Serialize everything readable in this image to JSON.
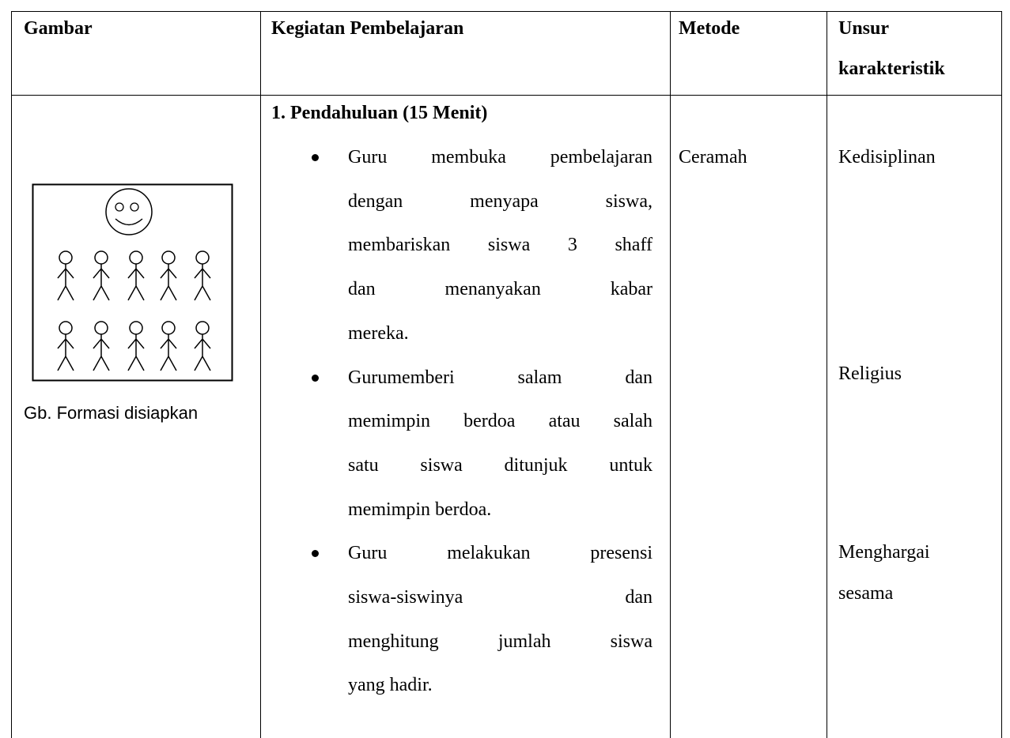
{
  "table": {
    "headers": [
      "Gambar",
      "Kegiatan Pembelajaran",
      "Metode",
      [
        "Unsur",
        "karakteristik"
      ]
    ],
    "image_caption": "Gb. Formasi disiapkan",
    "activity": {
      "heading": "1. Pendahuluan (15 Menit)",
      "bullets": [
        {
          "lines": [
            "Guru membuka pembelajaran",
            "dengan menyapa siswa,",
            "membariskan siswa 3 shaff",
            "dan menanyakan kabar",
            "mereka."
          ]
        },
        {
          "lines": [
            "Gurumemberi salam dan",
            "memimpin berdoa atau salah",
            "satu siswa ditunjuk untuk",
            "memimpin berdoa."
          ]
        },
        {
          "lines": [
            "Guru melakukan presensi",
            "siswa-siswinya dan",
            "menghitung jumlah siswa",
            "yang hadir."
          ]
        }
      ]
    },
    "method": "Ceramah",
    "characteristics": [
      [
        "Kedisiplinan"
      ],
      [
        "Religius"
      ],
      [
        "Menghargai",
        "sesama"
      ]
    ]
  }
}
